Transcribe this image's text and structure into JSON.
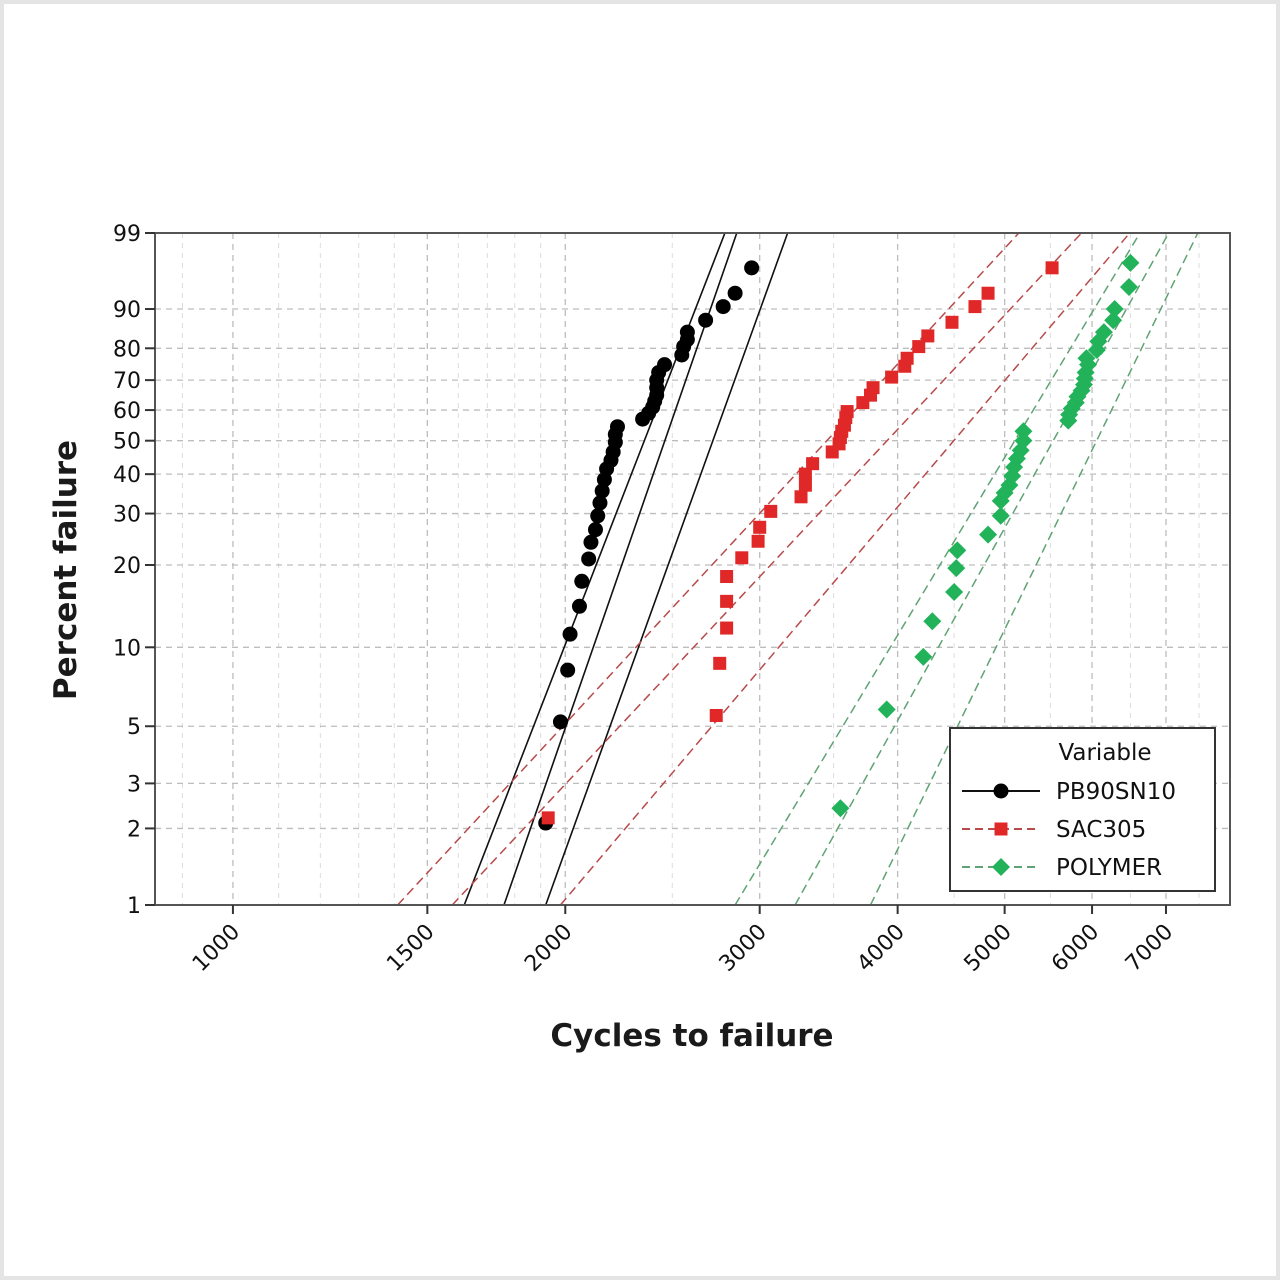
{
  "chart_data": {
    "type": "scatter",
    "title": "",
    "xlabel": "Cycles to failure",
    "ylabel": "Percent failure",
    "xscale": "log",
    "yscale": "weibull-probability",
    "xlim": [
      850,
      8000
    ],
    "ylim": [
      1,
      99
    ],
    "x_ticks": [
      1000,
      1500,
      2000,
      3000,
      4000,
      5000,
      6000,
      7000
    ],
    "x_tick_labels": [
      "1000",
      "1500",
      "2000",
      "3000",
      "4000",
      "5000",
      "6000",
      "7000"
    ],
    "y_ticks": [
      1,
      2,
      3,
      5,
      10,
      20,
      30,
      40,
      50,
      60,
      70,
      80,
      90,
      99
    ],
    "y_tick_labels": [
      "1",
      "2",
      "3",
      "5",
      "10",
      "20",
      "30",
      "40",
      "50",
      "60",
      "70",
      "80",
      "90",
      "99"
    ],
    "grid": true,
    "legend": {
      "title": "Variable",
      "position": "bottom-right"
    },
    "series": [
      {
        "name": "PB90SN10",
        "color": "#000000",
        "marker": "circle",
        "line_style": "solid",
        "points": [
          [
            1920,
            2.1
          ],
          [
            1980,
            5.2
          ],
          [
            2010,
            8.2
          ],
          [
            2020,
            11.2
          ],
          [
            2060,
            14.2
          ],
          [
            2070,
            17.5
          ],
          [
            2100,
            21
          ],
          [
            2110,
            24
          ],
          [
            2130,
            26.5
          ],
          [
            2140,
            29.5
          ],
          [
            2150,
            32.5
          ],
          [
            2160,
            35.5
          ],
          [
            2170,
            38.5
          ],
          [
            2180,
            41.5
          ],
          [
            2200,
            44
          ],
          [
            2210,
            46.5
          ],
          [
            2220,
            49.5
          ],
          [
            2220,
            52
          ],
          [
            2230,
            54.5
          ],
          [
            2350,
            57
          ],
          [
            2380,
            59
          ],
          [
            2400,
            61
          ],
          [
            2410,
            63
          ],
          [
            2420,
            65
          ],
          [
            2420,
            67.5
          ],
          [
            2420,
            70
          ],
          [
            2430,
            72.5
          ],
          [
            2460,
            75
          ],
          [
            2550,
            78
          ],
          [
            2560,
            80.5
          ],
          [
            2580,
            82.5
          ],
          [
            2580,
            84.5
          ],
          [
            2680,
            87.5
          ],
          [
            2780,
            90.5
          ],
          [
            2850,
            93
          ],
          [
            2950,
            96.5
          ]
        ],
        "fit_line": [
          [
            1760,
            1
          ],
          [
            2860,
            99
          ]
        ],
        "ci_lower": [
          [
            1620,
            1
          ],
          [
            2790,
            99
          ]
        ],
        "ci_upper": [
          [
            1920,
            1
          ],
          [
            3180,
            99
          ]
        ]
      },
      {
        "name": "SAC305",
        "color": "#e02828",
        "marker": "square",
        "line_style": "dashed",
        "points": [
          [
            1930,
            2.2
          ],
          [
            2740,
            5.5
          ],
          [
            2760,
            8.7
          ],
          [
            2800,
            11.8
          ],
          [
            2800,
            14.8
          ],
          [
            2800,
            18.2
          ],
          [
            2890,
            21.2
          ],
          [
            2990,
            24.2
          ],
          [
            3000,
            27
          ],
          [
            3070,
            30.5
          ],
          [
            3270,
            34
          ],
          [
            3300,
            37
          ],
          [
            3300,
            40
          ],
          [
            3350,
            43
          ],
          [
            3490,
            46.5
          ],
          [
            3540,
            49
          ],
          [
            3550,
            51
          ],
          [
            3560,
            53
          ],
          [
            3580,
            55
          ],
          [
            3590,
            57.5
          ],
          [
            3600,
            59.5
          ],
          [
            3720,
            62.5
          ],
          [
            3780,
            65
          ],
          [
            3800,
            67.5
          ],
          [
            3950,
            71
          ],
          [
            4060,
            74.5
          ],
          [
            4080,
            77
          ],
          [
            4180,
            80.5
          ],
          [
            4260,
            83.5
          ],
          [
            4480,
            87
          ],
          [
            4700,
            90.5
          ],
          [
            4830,
            93
          ],
          [
            5520,
            96.5
          ]
        ],
        "fit_line": [
          [
            1580,
            1
          ],
          [
            5870,
            99
          ]
        ],
        "ci_lower": [
          [
            1410,
            1
          ],
          [
            5150,
            99
          ]
        ],
        "ci_upper": [
          [
            1980,
            1
          ],
          [
            6490,
            99
          ]
        ]
      },
      {
        "name": "POLYMER",
        "color": "#22b35a",
        "marker": "diamond",
        "line_style": "dashed",
        "points": [
          [
            3550,
            2.4
          ],
          [
            3910,
            5.8
          ],
          [
            4220,
            9.2
          ],
          [
            4300,
            12.5
          ],
          [
            4500,
            16
          ],
          [
            4520,
            19.5
          ],
          [
            4530,
            22.5
          ],
          [
            4830,
            25.5
          ],
          [
            4960,
            29.5
          ],
          [
            4960,
            33
          ],
          [
            5000,
            35
          ],
          [
            5050,
            37
          ],
          [
            5080,
            39.5
          ],
          [
            5100,
            42
          ],
          [
            5130,
            44.5
          ],
          [
            5170,
            47
          ],
          [
            5200,
            50
          ],
          [
            5200,
            53
          ],
          [
            5710,
            56.5
          ],
          [
            5720,
            58.5
          ],
          [
            5750,
            60.5
          ],
          [
            5800,
            62.5
          ],
          [
            5820,
            64.5
          ],
          [
            5870,
            66.5
          ],
          [
            5900,
            68.5
          ],
          [
            5910,
            70.5
          ],
          [
            5920,
            72.5
          ],
          [
            5950,
            75
          ],
          [
            5930,
            77
          ],
          [
            6060,
            79.5
          ],
          [
            6080,
            82
          ],
          [
            6150,
            84.5
          ],
          [
            6270,
            87.5
          ],
          [
            6290,
            90
          ],
          [
            6480,
            94
          ],
          [
            6500,
            97
          ]
        ],
        "fit_line": [
          [
            3230,
            1
          ],
          [
            7040,
            99
          ]
        ],
        "ci_lower": [
          [
            2850,
            1
          ],
          [
            6630,
            99
          ]
        ],
        "ci_upper": [
          [
            3780,
            1
          ],
          [
            7480,
            99
          ]
        ]
      }
    ]
  }
}
